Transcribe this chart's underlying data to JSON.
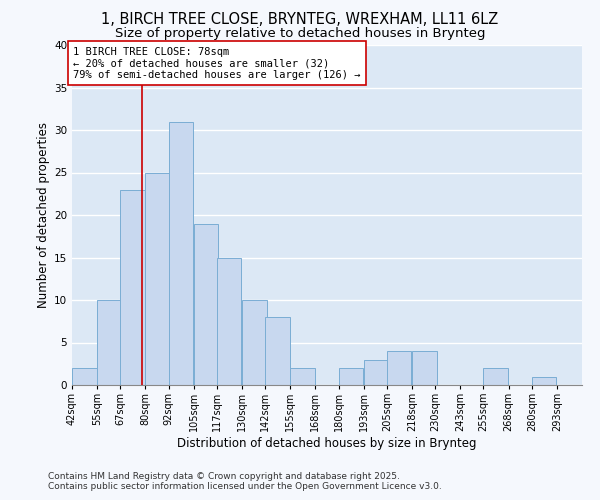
{
  "title": "1, BIRCH TREE CLOSE, BRYNTEG, WREXHAM, LL11 6LZ",
  "subtitle": "Size of property relative to detached houses in Brynteg",
  "xlabel": "Distribution of detached houses by size in Brynteg",
  "ylabel": "Number of detached properties",
  "bar_color": "#c8d8ef",
  "bar_edge_color": "#7aadd4",
  "background_color": "#dce8f5",
  "fig_background": "#f5f8fd",
  "grid_color": "#ffffff",
  "bin_starts": [
    42,
    55,
    67,
    80,
    92,
    105,
    117,
    130,
    142,
    155,
    168,
    180,
    193,
    205,
    218,
    230,
    243,
    255,
    268,
    280
  ],
  "bin_width": 13,
  "counts": [
    2,
    10,
    23,
    25,
    31,
    19,
    15,
    10,
    8,
    2,
    0,
    2,
    3,
    4,
    4,
    0,
    0,
    2,
    0,
    1
  ],
  "property_size": 78,
  "red_line_color": "#cc0000",
  "annotation_title": "1 BIRCH TREE CLOSE: 78sqm",
  "annotation_line1": "← 20% of detached houses are smaller (32)",
  "annotation_line2": "79% of semi-detached houses are larger (126) →",
  "annotation_box_color": "#ffffff",
  "annotation_box_edge": "#cc0000",
  "ylim": [
    0,
    40
  ],
  "tick_labels": [
    "42sqm",
    "55sqm",
    "67sqm",
    "80sqm",
    "92sqm",
    "105sqm",
    "117sqm",
    "130sqm",
    "142sqm",
    "155sqm",
    "168sqm",
    "180sqm",
    "193sqm",
    "205sqm",
    "218sqm",
    "230sqm",
    "243sqm",
    "255sqm",
    "268sqm",
    "280sqm",
    "293sqm"
  ],
  "footnote1": "Contains HM Land Registry data © Crown copyright and database right 2025.",
  "footnote2": "Contains public sector information licensed under the Open Government Licence v3.0.",
  "title_fontsize": 10.5,
  "subtitle_fontsize": 9.5,
  "axis_label_fontsize": 8.5,
  "tick_fontsize": 7,
  "annotation_fontsize": 7.5,
  "footnote_fontsize": 6.5
}
